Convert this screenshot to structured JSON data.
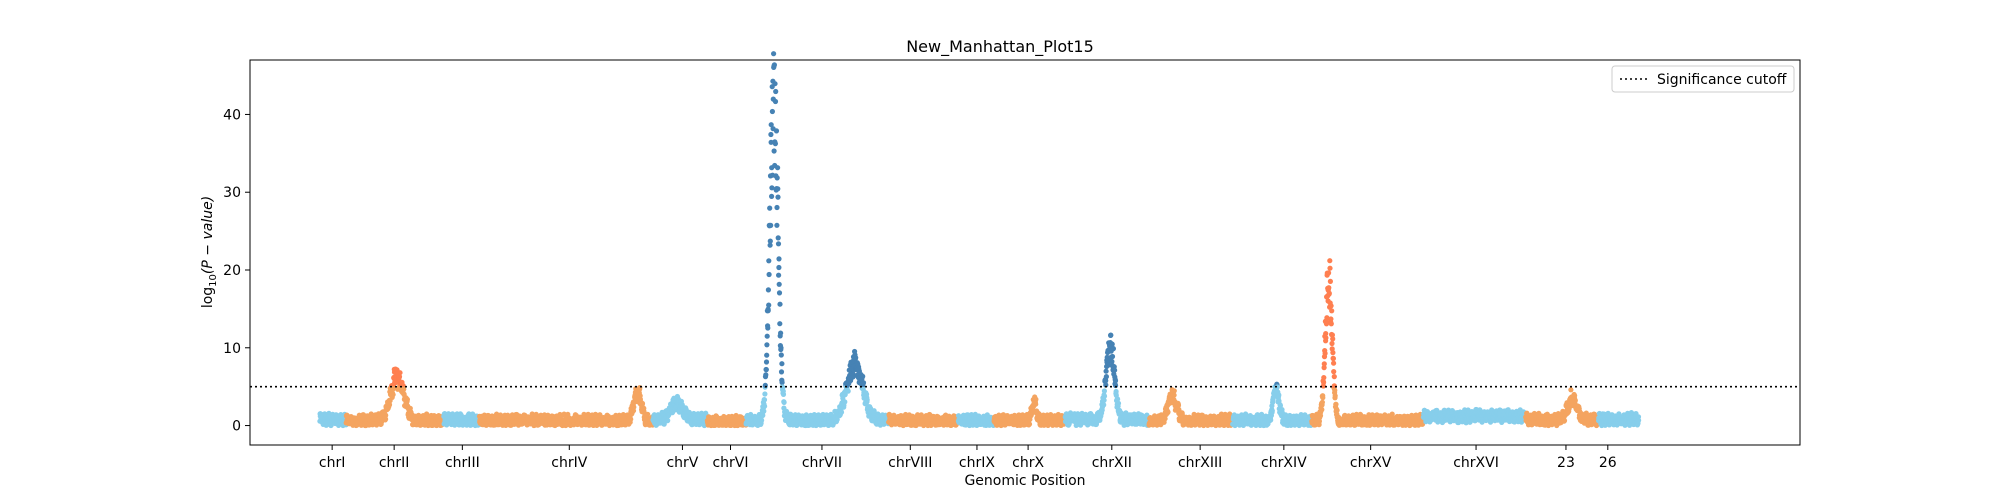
{
  "chart_data": {
    "type": "scatter",
    "title": "New_Manhattan_Plot15",
    "xlabel": "Genomic Position",
    "ylabel_prefix": "log",
    "ylabel_sub": "10",
    "ylabel_suffix": "(P − value)",
    "ylim": [
      -2.5,
      47
    ],
    "xlim": [
      0,
      100
    ],
    "yticks": [
      0,
      10,
      20,
      30,
      40
    ],
    "grid": false,
    "legend": {
      "placement": "top-right",
      "entries": [
        {
          "label": "Significance cutoff",
          "style": "dotted",
          "color": "#000000"
        }
      ]
    },
    "threshold": 5,
    "colors": {
      "light_blue": "#87ceeb",
      "orange": "#f4a460",
      "steel_blue": "#4682b4",
      "coral": "#ff7f50"
    },
    "chromosomes": [
      {
        "label": "chrI",
        "start": 4.5,
        "end": 6.2,
        "tick": 5.3,
        "color": "light_blue",
        "base": 0.8,
        "peaks": []
      },
      {
        "label": "chrII",
        "start": 6.2,
        "end": 12.5,
        "tick": 9.3,
        "color": "orange",
        "base": 0.6,
        "peaks": [
          {
            "center": 9.5,
            "height": 6.0,
            "width": 0.9
          }
        ]
      },
      {
        "label": "chrIII",
        "start": 12.5,
        "end": 14.8,
        "tick": 13.7,
        "color": "light_blue",
        "base": 0.7,
        "peaks": []
      },
      {
        "label": "chrIV",
        "start": 14.8,
        "end": 26.0,
        "tick": 20.6,
        "color": "orange",
        "base": 0.6,
        "peaks": [
          {
            "center": 25.0,
            "height": 4.0,
            "width": 0.5
          }
        ]
      },
      {
        "label": "chrV",
        "start": 26.0,
        "end": 29.5,
        "tick": 27.9,
        "color": "light_blue",
        "base": 0.7,
        "peaks": [
          {
            "center": 27.5,
            "height": 2.5,
            "width": 0.8
          }
        ]
      },
      {
        "label": "chrVI",
        "start": 29.5,
        "end": 32.0,
        "tick": 31.0,
        "color": "orange",
        "base": 0.4,
        "peaks": []
      },
      {
        "label": "chrVII",
        "start": 32.0,
        "end": 41.2,
        "tick": 36.9,
        "color": "light_blue",
        "base": 0.6,
        "peaks": [
          {
            "center": 33.8,
            "height": 44.5,
            "width": 0.55
          },
          {
            "center": 39.0,
            "height": 7.5,
            "width": 1.1
          }
        ]
      },
      {
        "label": "chrVIII",
        "start": 41.2,
        "end": 45.7,
        "tick": 42.6,
        "color": "orange",
        "base": 0.6,
        "peaks": []
      },
      {
        "label": "chrIX",
        "start": 45.7,
        "end": 48.0,
        "tick": 46.9,
        "color": "light_blue",
        "base": 0.6,
        "peaks": []
      },
      {
        "label": "chrX",
        "start": 48.0,
        "end": 52.6,
        "tick": 50.2,
        "color": "orange",
        "base": 0.6,
        "peaks": [
          {
            "center": 50.6,
            "height": 2.8,
            "width": 0.3
          }
        ]
      },
      {
        "label": "chrXII",
        "start": 52.6,
        "end": 58.0,
        "tick": 55.6,
        "color": "light_blue",
        "base": 0.8,
        "peaks": [
          {
            "center": 55.5,
            "height": 10.5,
            "width": 0.55
          }
        ]
      },
      {
        "label": "chrXIII",
        "start": 58.0,
        "end": 63.4,
        "tick": 61.3,
        "color": "orange",
        "base": 0.6,
        "peaks": [
          {
            "center": 59.5,
            "height": 3.5,
            "width": 0.6
          }
        ]
      },
      {
        "label": "chrXIV",
        "start": 63.4,
        "end": 68.5,
        "tick": 66.7,
        "color": "light_blue",
        "base": 0.6,
        "peaks": [
          {
            "center": 66.2,
            "height": 4.5,
            "width": 0.4
          }
        ]
      },
      {
        "label": "chrXV",
        "start": 68.5,
        "end": 75.7,
        "tick": 72.3,
        "color": "orange",
        "base": 0.6,
        "peaks": [
          {
            "center": 69.6,
            "height": 20.0,
            "width": 0.45
          }
        ]
      },
      {
        "label": "chrXVI",
        "start": 75.7,
        "end": 82.3,
        "tick": 79.1,
        "color": "light_blue",
        "base": 1.2,
        "peaks": []
      },
      {
        "label": "23",
        "start": 82.3,
        "end": 87.0,
        "tick": 84.9,
        "color": "orange",
        "base": 0.7,
        "peaks": [
          {
            "center": 85.3,
            "height": 3.0,
            "width": 0.6
          }
        ]
      },
      {
        "label": "26",
        "start": 87.0,
        "end": 89.6,
        "tick": 87.6,
        "color": "light_blue",
        "base": 0.8,
        "peaks": []
      }
    ]
  }
}
